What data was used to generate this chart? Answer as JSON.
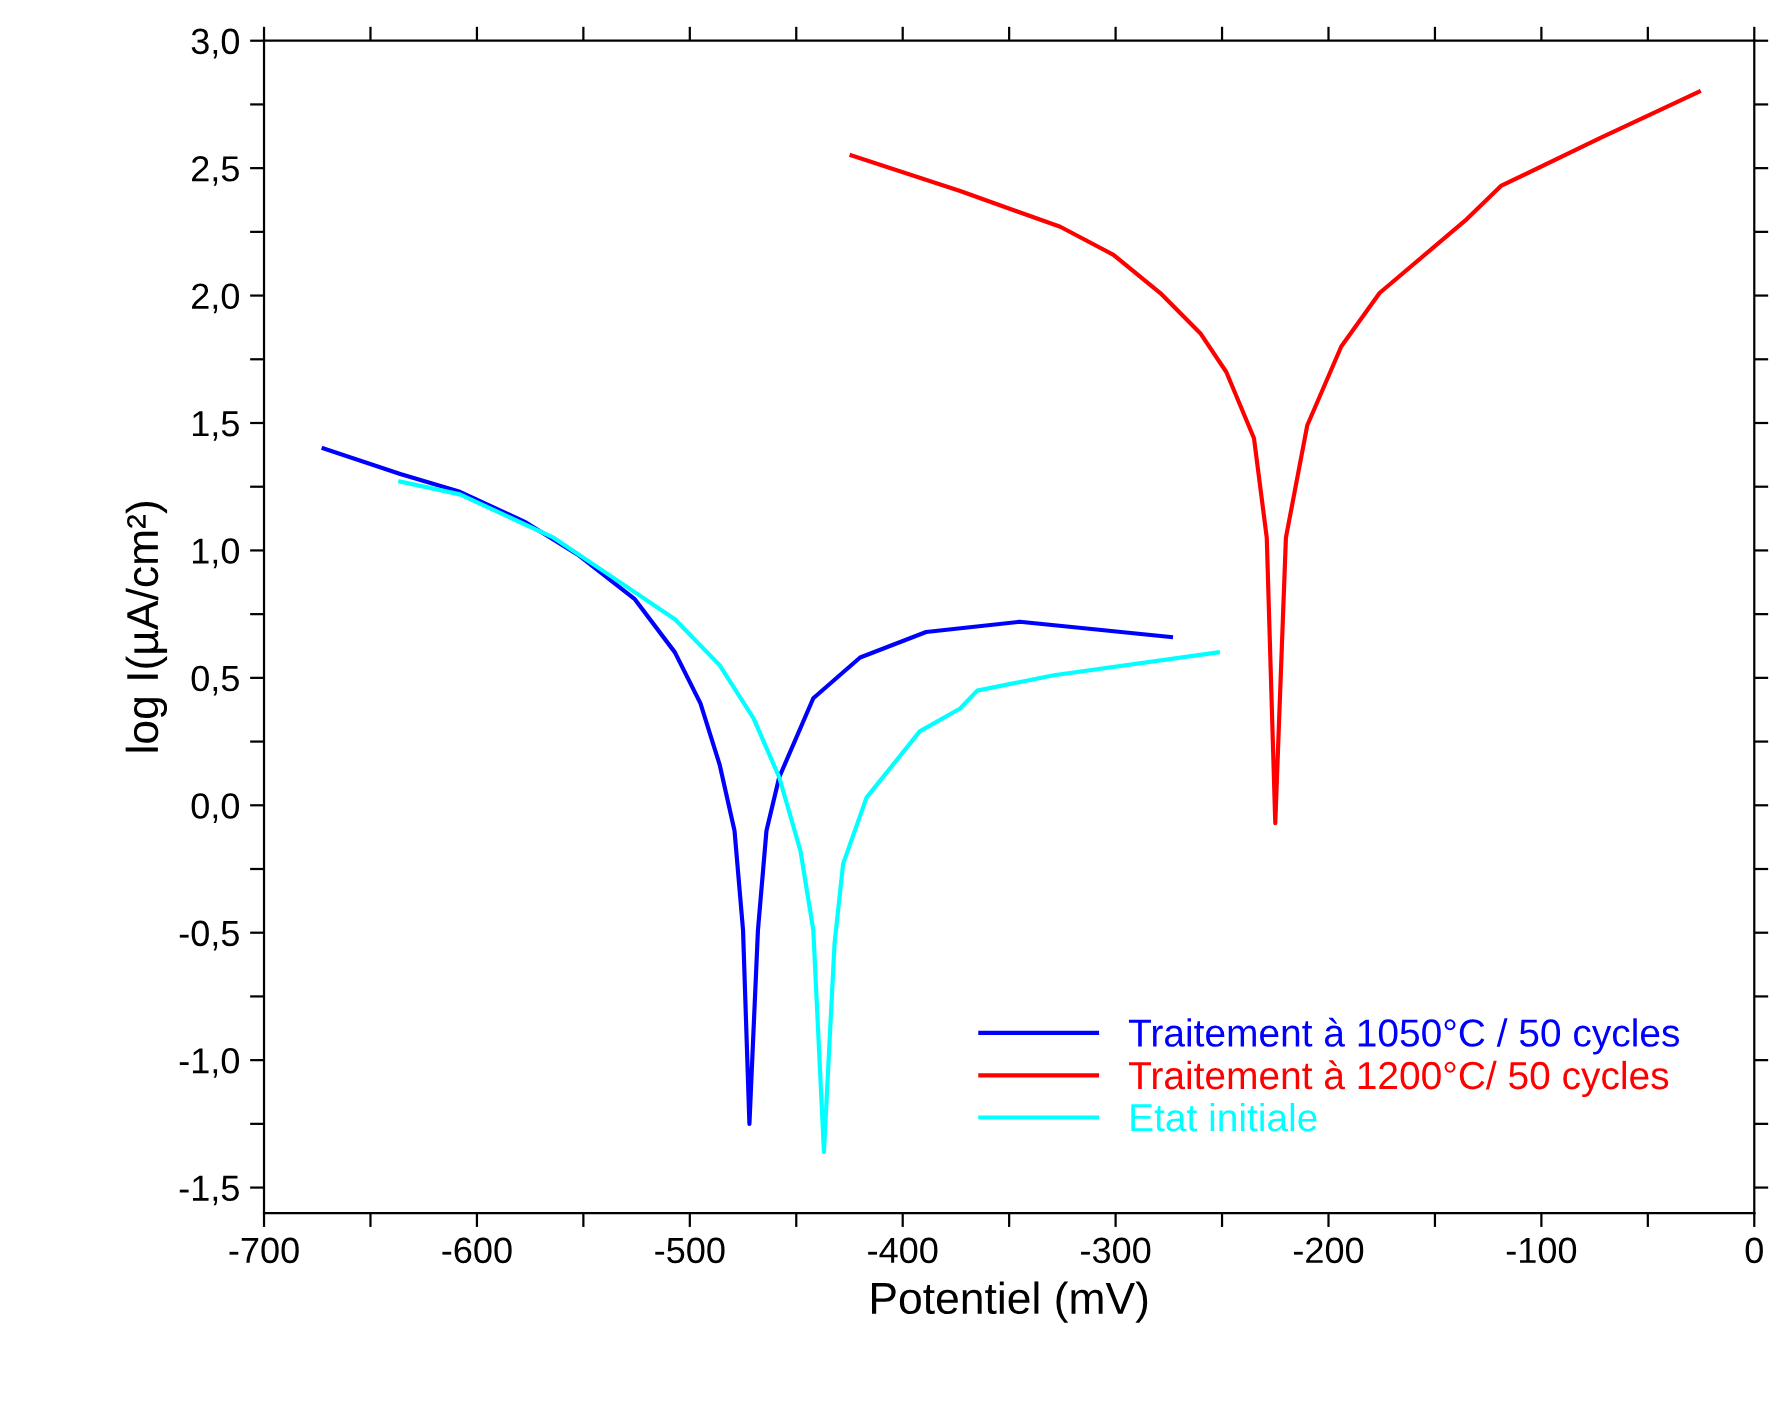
{
  "chart_data": {
    "type": "line",
    "xlabel": "Potentiel (mV)",
    "ylabel": "log I(µA/cm²)",
    "xlim": [
      -700,
      0
    ],
    "ylim": [
      -1.6,
      3.0
    ],
    "xticks": [
      -700,
      {
        "value": -650,
        "label": null
      },
      -600,
      {
        "value": -550,
        "label": null
      },
      -500,
      {
        "value": -450,
        "label": null
      },
      -400,
      {
        "value": -350,
        "label": null
      },
      -300,
      {
        "value": -250,
        "label": null
      },
      -200,
      {
        "value": -150,
        "label": null
      },
      -100,
      {
        "value": -50,
        "label": null
      },
      0
    ],
    "yticks": [
      {
        "value": -1.5,
        "label": "-1,5"
      },
      {
        "value": -1.25,
        "label": null
      },
      {
        "value": -1.0,
        "label": "-1,0"
      },
      {
        "value": -0.75,
        "label": null
      },
      {
        "value": -0.5,
        "label": "-0,5"
      },
      {
        "value": -0.25,
        "label": null
      },
      {
        "value": 0.0,
        "label": "0,0"
      },
      {
        "value": 0.25,
        "label": null
      },
      {
        "value": 0.5,
        "label": "0,5"
      },
      {
        "value": 0.75,
        "label": null
      },
      {
        "value": 1.0,
        "label": "1,0"
      },
      {
        "value": 1.25,
        "label": null
      },
      {
        "value": 1.5,
        "label": "1,5"
      },
      {
        "value": 1.75,
        "label": null
      },
      {
        "value": 2.0,
        "label": "2,0"
      },
      {
        "value": 2.25,
        "label": null
      },
      {
        "value": 2.5,
        "label": "2,5"
      },
      {
        "value": 2.75,
        "label": null
      },
      {
        "value": 3.0,
        "label": "3,0"
      }
    ],
    "grid": false,
    "legend": "bottom right",
    "marker": "none",
    "line_style": "solid",
    "series": [
      {
        "name": "Traitement à 1050°C / 50 cycles",
        "color": "#0000ff",
        "x": [
          -672,
          -636,
          -608,
          -577,
          -552,
          -526,
          -507,
          -495,
          -486,
          -479,
          -475,
          -472,
          -468,
          -464,
          -458,
          -442,
          -420,
          -389,
          -345,
          -274
        ],
        "values": [
          1.4,
          1.3,
          1.23,
          1.11,
          0.98,
          0.81,
          0.6,
          0.4,
          0.16,
          -0.1,
          -0.49,
          -1.25,
          -0.49,
          -0.1,
          0.11,
          0.42,
          0.58,
          0.68,
          0.72,
          0.66
        ]
      },
      {
        "name": "Traitement à 1200°C/ 50 cycles",
        "color": "#ff0000",
        "x": [
          -424,
          -373,
          -326,
          -301,
          -279,
          -260,
          -248,
          -235,
          -229,
          -225,
          -220,
          -210,
          -194,
          -176,
          -135,
          -119,
          -72,
          -26
        ],
        "values": [
          2.55,
          2.41,
          2.27,
          2.16,
          2.01,
          1.85,
          1.7,
          1.44,
          1.05,
          -0.07,
          1.05,
          1.49,
          1.8,
          2.01,
          2.3,
          2.43,
          2.62,
          2.8
        ]
      },
      {
        "name": "Etat initiale",
        "color": "#00ffff",
        "x": [
          -636,
          -608,
          -564,
          -539,
          -507,
          -486,
          -470,
          -458,
          -448,
          -442,
          -437,
          -432,
          -428,
          -417,
          -392,
          -373,
          -365,
          -329,
          -252
        ],
        "values": [
          1.27,
          1.22,
          1.05,
          0.91,
          0.73,
          0.55,
          0.34,
          0.11,
          -0.18,
          -0.49,
          -1.36,
          -0.54,
          -0.23,
          0.03,
          0.29,
          0.38,
          0.45,
          0.51,
          0.6
        ]
      }
    ]
  }
}
